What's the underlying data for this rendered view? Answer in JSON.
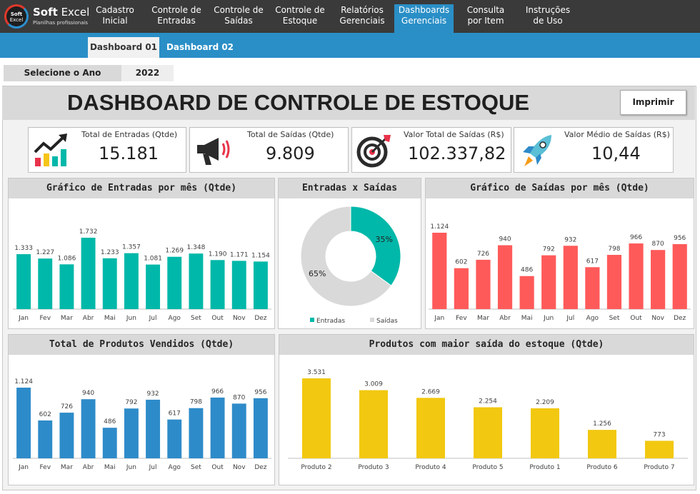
{
  "app": {
    "logo_top": "Soft",
    "logo_bottom": "Excel",
    "name_bold": "Soft",
    "name_rest": " Excel",
    "subtitle": "Planilhas profissionais"
  },
  "nav": [
    {
      "line1": "Cadastro",
      "line2": "Inicial"
    },
    {
      "line1": "Controle de",
      "line2": "Entradas"
    },
    {
      "line1": "Controle de",
      "line2": "Saídas"
    },
    {
      "line1": "Controle de",
      "line2": "Estoque"
    },
    {
      "line1": "Relatórios",
      "line2": "Gerenciais"
    },
    {
      "line1": "Dashboards",
      "line2": "Gerenciais"
    },
    {
      "line1": "Consulta",
      "line2": "por Item"
    },
    {
      "line1": "Instruções",
      "line2": "de Uso"
    }
  ],
  "subtabs": [
    "Dashboard 01",
    "Dashboard 02"
  ],
  "year": {
    "label": "Selecione o Ano",
    "value": "2022"
  },
  "title": "DASHBOARD DE CONTROLE DE ESTOQUE",
  "print_label": "Imprimir",
  "kpis": [
    {
      "label": "Total de Entradas (Qtde)",
      "value": "15.181",
      "icon": "growth-chart-icon"
    },
    {
      "label": "Total de Saídas (Qtde)",
      "value": "9.809",
      "icon": "megaphone-icon"
    },
    {
      "label": "Valor Total de Saídas (R$)",
      "value": "102.337,82",
      "icon": "target-icon"
    },
    {
      "label": "Valor Médio de Saídas (R$)",
      "value": "10,44",
      "icon": "rocket-icon"
    }
  ],
  "colors": {
    "teal": "#00b8a9",
    "red": "#ff5a5a",
    "blue": "#2e8bc9",
    "yellow": "#f2c811",
    "gray": "#d9d9d9"
  },
  "chart_data": [
    {
      "type": "bar",
      "title": "Gráfico de Entradas por mês (Qtde)",
      "categories": [
        "Jan",
        "Fev",
        "Mar",
        "Abr",
        "Mai",
        "Jun",
        "Jul",
        "Ago",
        "Set",
        "Out",
        "Nov",
        "Dez"
      ],
      "values": [
        1333,
        1227,
        1086,
        1732,
        1233,
        1357,
        1081,
        1269,
        1348,
        1190,
        1171,
        1154
      ],
      "labels": [
        "1.333",
        "1.227",
        "1.086",
        "1.732",
        "1.233",
        "1.357",
        "1.081",
        "1.269",
        "1.348",
        "1.190",
        "1.171",
        "1.154"
      ],
      "color": "#00b8a9"
    },
    {
      "type": "pie",
      "title": "Entradas x Saídas",
      "categories": [
        "Entradas",
        "Saídas"
      ],
      "values": [
        35,
        65
      ],
      "labels": [
        "35%",
        "65%"
      ],
      "colors": [
        "#00b8a9",
        "#d9d9d9"
      ],
      "legend": "bottom"
    },
    {
      "type": "bar",
      "title": "Gráfico de Saídas por mês (Qtde)",
      "categories": [
        "Jan",
        "Fev",
        "Mar",
        "Abr",
        "Mai",
        "Jun",
        "Jul",
        "Ago",
        "Set",
        "Out",
        "Nov",
        "Dez"
      ],
      "values": [
        1124,
        602,
        726,
        940,
        486,
        792,
        932,
        617,
        798,
        966,
        870,
        956
      ],
      "labels": [
        "1.124",
        "602",
        "726",
        "940",
        "486",
        "792",
        "932",
        "617",
        "798",
        "966",
        "870",
        "956"
      ],
      "color": "#ff5a5a"
    },
    {
      "type": "bar",
      "title": "Total de Produtos Vendidos (Qtde)",
      "categories": [
        "Jan",
        "Fev",
        "Mar",
        "Abr",
        "Mai",
        "Jun",
        "Jul",
        "Ago",
        "Set",
        "Out",
        "Nov",
        "Dez"
      ],
      "values": [
        1124,
        602,
        726,
        940,
        486,
        792,
        932,
        617,
        798,
        966,
        870,
        956
      ],
      "labels": [
        "1.124",
        "602",
        "726",
        "940",
        "486",
        "792",
        "932",
        "617",
        "798",
        "966",
        "870",
        "956"
      ],
      "color": "#2e8bc9"
    },
    {
      "type": "bar",
      "title": "Produtos com maior saída do estoque (Qtde)",
      "categories": [
        "Produto 2",
        "Produto 3",
        "Produto 4",
        "Produto 5",
        "Produto 1",
        "Produto 6",
        "Produto 7"
      ],
      "values": [
        3531,
        3009,
        2669,
        2254,
        2209,
        1256,
        773
      ],
      "labels": [
        "3.531",
        "3.009",
        "2.669",
        "2.254",
        "2.209",
        "1.256",
        "773"
      ],
      "color": "#f2c811"
    }
  ]
}
